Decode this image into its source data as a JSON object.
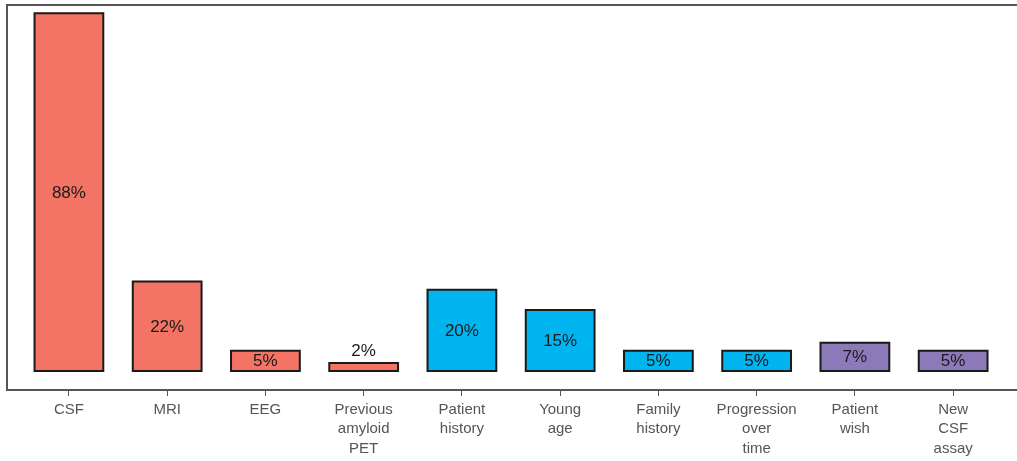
{
  "chart_data": {
    "type": "bar",
    "categories": [
      "CSF",
      "MRI",
      "EEG",
      "Previous amyloid PET",
      "Patient history",
      "Young age",
      "Family history",
      "Progression over time",
      "Patient wish",
      "New CSF assay"
    ],
    "values": [
      88,
      22,
      5,
      2,
      20,
      15,
      5,
      5,
      7,
      5
    ],
    "value_labels": [
      "88%",
      "22%",
      "5%",
      "2%",
      "20%",
      "15%",
      "5%",
      "5%",
      "7%",
      "5%"
    ],
    "colors": [
      "#f37365",
      "#f37365",
      "#f37365",
      "#f37365",
      "#00b5ef",
      "#00b5ef",
      "#00b5ef",
      "#00b5ef",
      "#8c7ab8",
      "#8c7ab8"
    ]
  }
}
